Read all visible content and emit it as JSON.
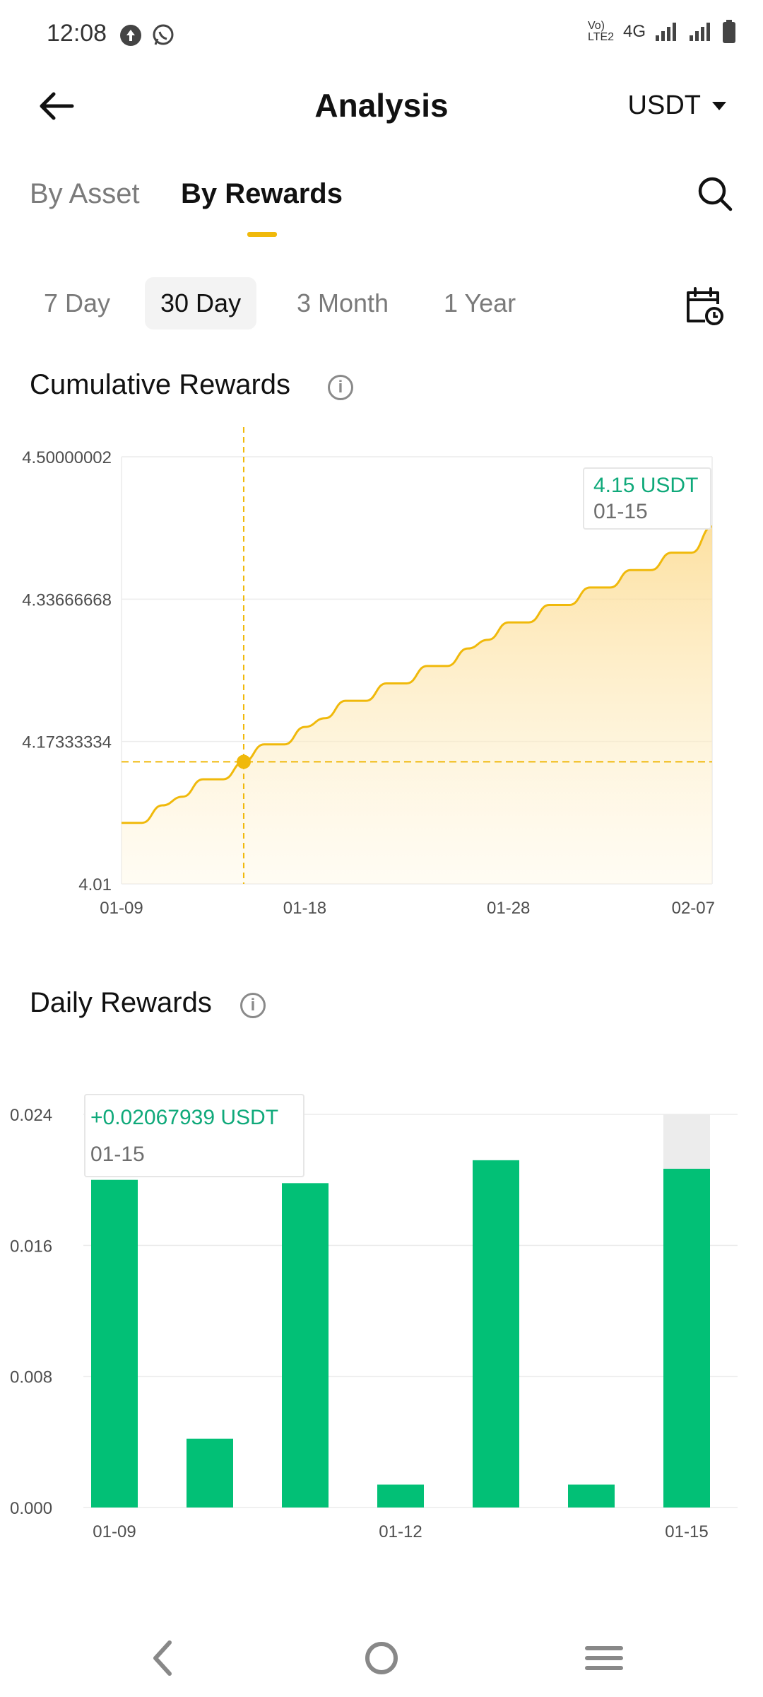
{
  "status_bar": {
    "time": "12:08",
    "icons": [
      "upload-icon",
      "whatsapp-icon"
    ],
    "network": "Vo) LTE2",
    "network_type": "4G",
    "right_icons": [
      "signal-icon",
      "signal-icon",
      "battery-icon"
    ]
  },
  "header": {
    "title": "Analysis",
    "currency": "USDT"
  },
  "tabs": [
    {
      "label": "By Asset",
      "active": false
    },
    {
      "label": "By Rewards",
      "active": true
    }
  ],
  "periods": [
    {
      "label": "7 Day",
      "active": false
    },
    {
      "label": "30 Day",
      "active": true
    },
    {
      "label": "3 Month",
      "active": false
    },
    {
      "label": "1 Year",
      "active": false
    }
  ],
  "cumulative": {
    "title": "Cumulative Rewards",
    "tooltip_value": "4.15 USDT",
    "tooltip_date": "01-15"
  },
  "daily": {
    "title": "Daily Rewards",
    "tooltip_value": "+0.02067939 USDT",
    "tooltip_date": "01-15"
  },
  "colors": {
    "accent": "#f0b90b",
    "green": "#02c076",
    "tooltip_text": "#0fa97a"
  },
  "chart_data": [
    {
      "type": "area",
      "title": "Cumulative Rewards",
      "x_ticks": [
        "01-09",
        "01-18",
        "01-28",
        "02-07"
      ],
      "y_ticks": [
        "4.50000002",
        "4.33666668",
        "4.17333334",
        "4.01"
      ],
      "ylim": [
        4.01,
        4.50000002
      ],
      "x": [
        "01-09",
        "01-10",
        "01-11",
        "01-12",
        "01-13",
        "01-14",
        "01-15",
        "01-16",
        "01-17",
        "01-18",
        "01-19",
        "01-20",
        "01-21",
        "01-22",
        "01-23",
        "01-24",
        "01-25",
        "01-26",
        "01-27",
        "01-28",
        "01-29",
        "01-30",
        "01-31",
        "02-01",
        "02-02",
        "02-03",
        "02-04",
        "02-05",
        "02-06",
        "02-07"
      ],
      "values": [
        4.08,
        4.08,
        4.1,
        4.11,
        4.13,
        4.13,
        4.15,
        4.17,
        4.17,
        4.19,
        4.2,
        4.22,
        4.22,
        4.24,
        4.24,
        4.26,
        4.26,
        4.28,
        4.29,
        4.31,
        4.31,
        4.33,
        4.33,
        4.35,
        4.35,
        4.37,
        4.37,
        4.39,
        4.39,
        4.42
      ],
      "highlight": {
        "x": "01-15",
        "value": 4.15
      },
      "grid": true
    },
    {
      "type": "bar",
      "title": "Daily Rewards",
      "x_ticks": [
        "01-09",
        "01-12",
        "01-15"
      ],
      "y_ticks": [
        "0.024",
        "0.016",
        "0.008",
        "0.000"
      ],
      "ylim": [
        0,
        0.024
      ],
      "categories": [
        "01-09",
        "01-10",
        "01-11",
        "01-12",
        "01-13",
        "01-14",
        "01-15"
      ],
      "values": [
        0.02,
        0.0042,
        0.0198,
        0.0014,
        0.0212,
        0.0014,
        0.02067939
      ],
      "highlight": {
        "x": "01-15",
        "value": 0.02067939
      },
      "grid": true
    }
  ]
}
